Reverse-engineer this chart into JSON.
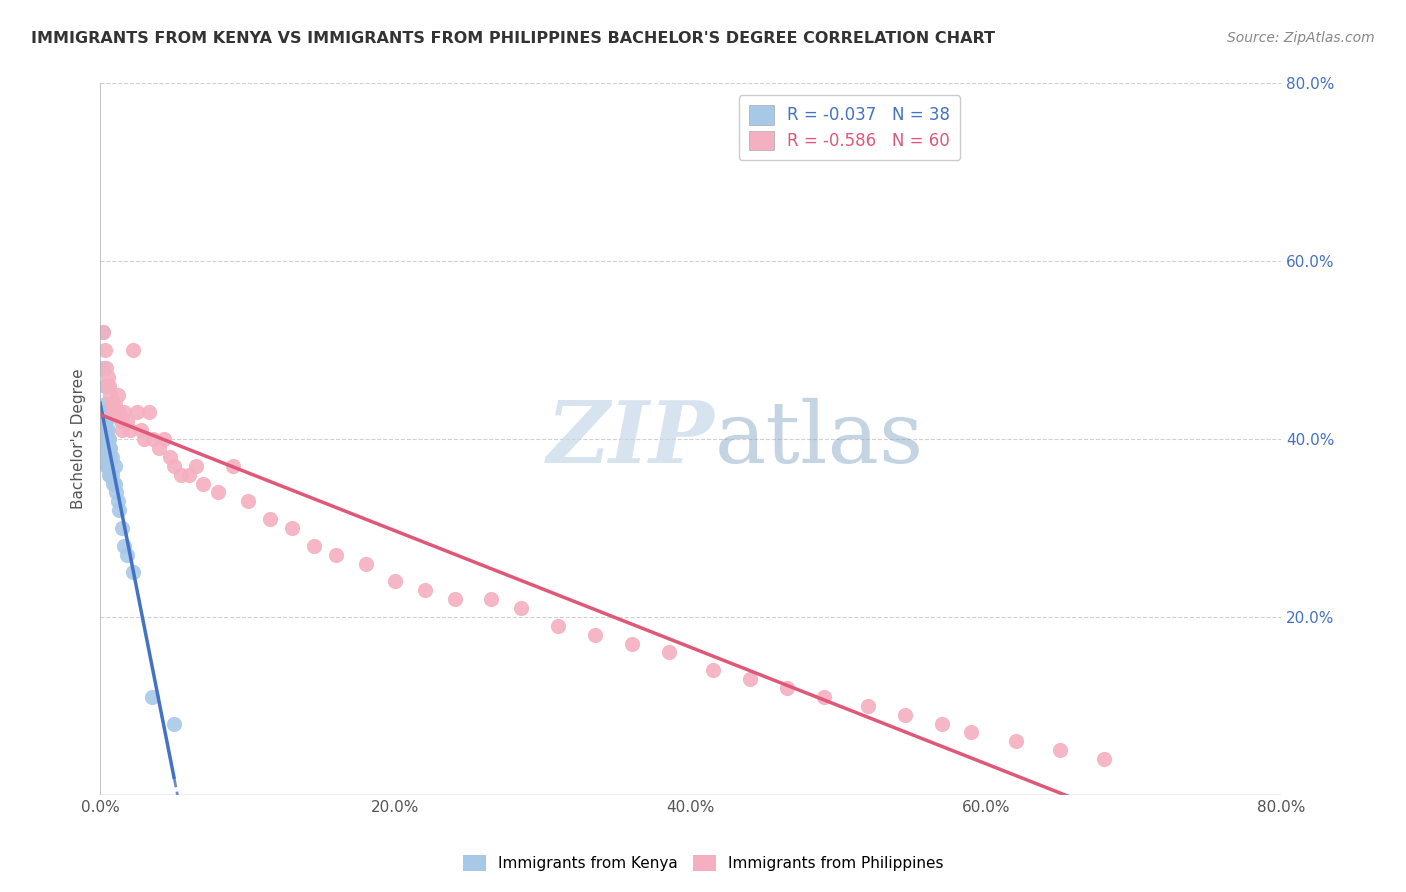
{
  "title": "IMMIGRANTS FROM KENYA VS IMMIGRANTS FROM PHILIPPINES BACHELOR'S DEGREE CORRELATION CHART",
  "source": "Source: ZipAtlas.com",
  "ylabel": "Bachelor's Degree",
  "xlim": [
    0.0,
    0.8
  ],
  "ylim": [
    0.0,
    0.8
  ],
  "xtick_labels": [
    "0.0%",
    "20.0%",
    "40.0%",
    "60.0%",
    "80.0%"
  ],
  "xtick_vals": [
    0.0,
    0.2,
    0.4,
    0.6,
    0.8
  ],
  "ytick_labels_right": [
    "20.0%",
    "40.0%",
    "60.0%",
    "80.0%"
  ],
  "ytick_vals_right": [
    0.2,
    0.4,
    0.6,
    0.8
  ],
  "kenya_R": -0.037,
  "kenya_N": 38,
  "phil_R": -0.586,
  "phil_N": 60,
  "kenya_color": "#a8c8e8",
  "phil_color": "#f4b0c0",
  "kenya_line_color": "#4472c4",
  "phil_line_color": "#e05878",
  "right_tick_color": "#4472c4",
  "background_color": "#ffffff",
  "grid_color": "#cccccc",
  "watermark_zip": "ZIP",
  "watermark_atlas": "atlas",
  "kenya_x": [
    0.002,
    0.002,
    0.003,
    0.003,
    0.003,
    0.003,
    0.004,
    0.004,
    0.004,
    0.004,
    0.004,
    0.004,
    0.005,
    0.005,
    0.005,
    0.005,
    0.005,
    0.006,
    0.006,
    0.006,
    0.006,
    0.007,
    0.007,
    0.007,
    0.008,
    0.008,
    0.009,
    0.01,
    0.01,
    0.011,
    0.012,
    0.013,
    0.015,
    0.016,
    0.018,
    0.022,
    0.035,
    0.05
  ],
  "kenya_y": [
    0.52,
    0.48,
    0.46,
    0.44,
    0.43,
    0.42,
    0.42,
    0.41,
    0.4,
    0.39,
    0.38,
    0.37,
    0.41,
    0.4,
    0.39,
    0.38,
    0.37,
    0.4,
    0.39,
    0.38,
    0.36,
    0.39,
    0.38,
    0.36,
    0.38,
    0.36,
    0.35,
    0.37,
    0.35,
    0.34,
    0.33,
    0.32,
    0.3,
    0.28,
    0.27,
    0.25,
    0.11,
    0.08
  ],
  "phil_x": [
    0.002,
    0.003,
    0.004,
    0.005,
    0.005,
    0.006,
    0.007,
    0.008,
    0.009,
    0.01,
    0.011,
    0.012,
    0.013,
    0.014,
    0.015,
    0.016,
    0.018,
    0.02,
    0.022,
    0.025,
    0.028,
    0.03,
    0.033,
    0.036,
    0.04,
    0.043,
    0.047,
    0.05,
    0.055,
    0.06,
    0.065,
    0.07,
    0.08,
    0.09,
    0.1,
    0.115,
    0.13,
    0.145,
    0.16,
    0.18,
    0.2,
    0.22,
    0.24,
    0.265,
    0.285,
    0.31,
    0.335,
    0.36,
    0.385,
    0.415,
    0.44,
    0.465,
    0.49,
    0.52,
    0.545,
    0.57,
    0.59,
    0.62,
    0.65,
    0.68
  ],
  "phil_y": [
    0.52,
    0.5,
    0.48,
    0.47,
    0.46,
    0.46,
    0.45,
    0.44,
    0.43,
    0.44,
    0.43,
    0.45,
    0.43,
    0.42,
    0.41,
    0.43,
    0.42,
    0.41,
    0.5,
    0.43,
    0.41,
    0.4,
    0.43,
    0.4,
    0.39,
    0.4,
    0.38,
    0.37,
    0.36,
    0.36,
    0.37,
    0.35,
    0.34,
    0.37,
    0.33,
    0.31,
    0.3,
    0.28,
    0.27,
    0.26,
    0.24,
    0.23,
    0.22,
    0.22,
    0.21,
    0.19,
    0.18,
    0.17,
    0.16,
    0.14,
    0.13,
    0.12,
    0.11,
    0.1,
    0.09,
    0.08,
    0.07,
    0.06,
    0.05,
    0.04
  ]
}
